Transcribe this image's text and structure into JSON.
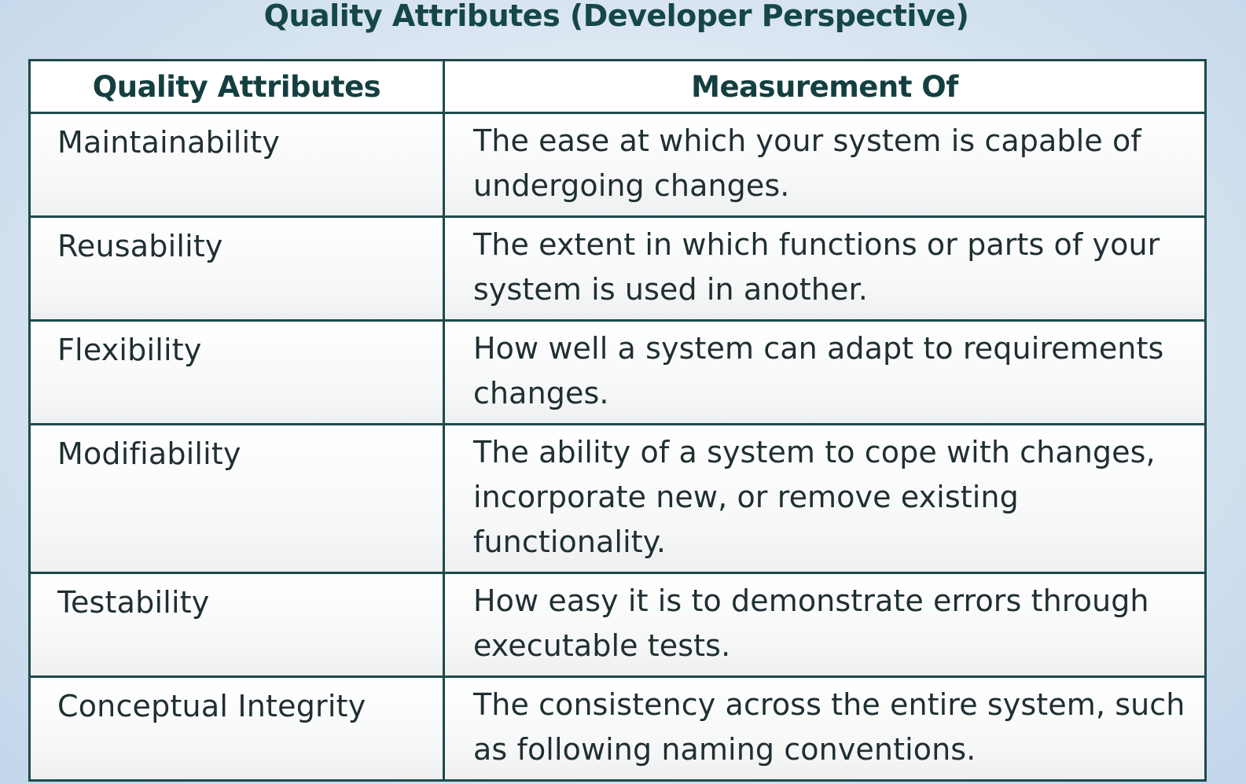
{
  "slide": {
    "title": "Quality Attributes (Developer Perspective)"
  },
  "table": {
    "headers": [
      "Quality Attributes",
      "Measurement Of"
    ],
    "rows": [
      {
        "attribute": "Maintainability",
        "measurement": "The ease at which your system is capable of undergoing changes."
      },
      {
        "attribute": "Reusability",
        "measurement": "The extent in which functions or parts of your system is used in another."
      },
      {
        "attribute": "Flexibility",
        "measurement": "How well a system can adapt to requirements changes."
      },
      {
        "attribute": "Modifiability",
        "measurement": "The ability of a system to cope with changes, incorporate new, or remove existing functionality."
      },
      {
        "attribute": "Testability",
        "measurement": "How easy it is to demonstrate errors through executable tests."
      },
      {
        "attribute": "Conceptual Integrity",
        "measurement": "The consistency across the entire system, such as following naming conventions."
      }
    ]
  },
  "colors": {
    "title": "#154748",
    "border": "#1e4a4b",
    "text": "#1f2f33",
    "background": "#c2d6ea"
  }
}
